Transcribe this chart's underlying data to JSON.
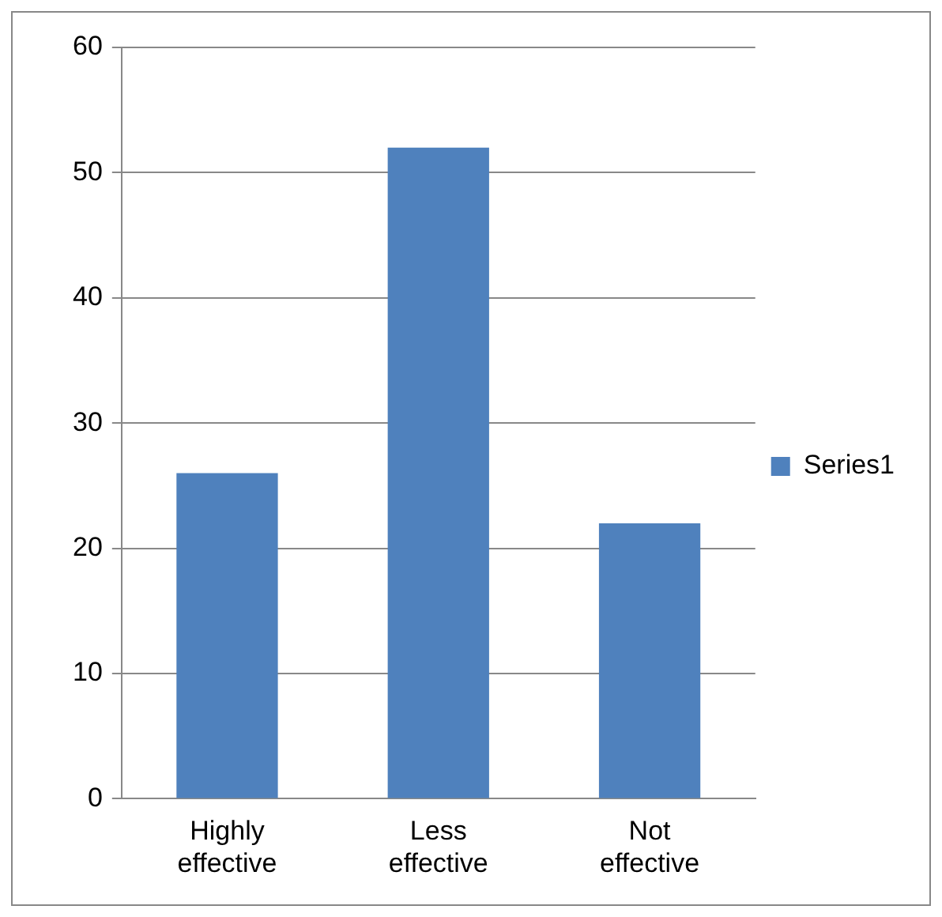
{
  "chart_data": {
    "type": "bar",
    "categories": [
      "Highly effective",
      "Less effective",
      "Not effective"
    ],
    "series": [
      {
        "name": "Series1",
        "color": "#4f81bd",
        "values": [
          26,
          52,
          22
        ]
      }
    ],
    "ylim": [
      0,
      60
    ],
    "yticks": [
      0,
      10,
      20,
      30,
      40,
      50,
      60
    ],
    "grid": "y",
    "legend": "right"
  }
}
